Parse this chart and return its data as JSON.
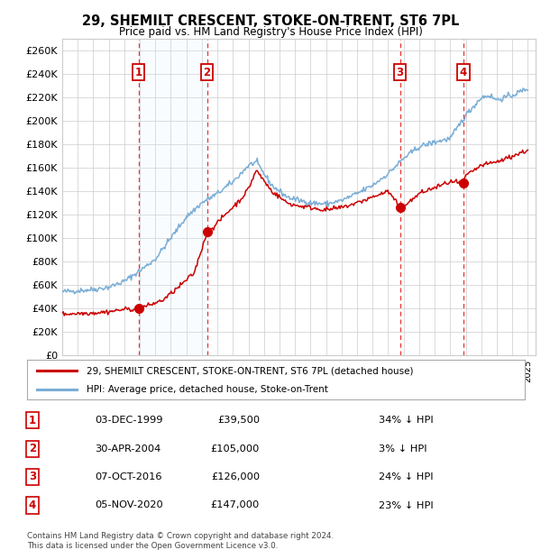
{
  "title": "29, SHEMILT CRESCENT, STOKE-ON-TRENT, ST6 7PL",
  "subtitle": "Price paid vs. HM Land Registry's House Price Index (HPI)",
  "ylim": [
    0,
    270000
  ],
  "yticks": [
    0,
    20000,
    40000,
    60000,
    80000,
    100000,
    120000,
    140000,
    160000,
    180000,
    200000,
    220000,
    240000,
    260000
  ],
  "xlim_start": 1995.0,
  "xlim_end": 2025.5,
  "sale_dates": [
    1999.92,
    2004.33,
    2016.77,
    2020.84
  ],
  "sale_prices": [
    39500,
    105000,
    126000,
    147000
  ],
  "sale_labels": [
    "1",
    "2",
    "3",
    "4"
  ],
  "legend_red": "29, SHEMILT CRESCENT, STOKE-ON-TRENT, ST6 7PL (detached house)",
  "legend_blue": "HPI: Average price, detached house, Stoke-on-Trent",
  "table_rows": [
    [
      "1",
      "03-DEC-1999",
      "£39,500",
      "34% ↓ HPI"
    ],
    [
      "2",
      "30-APR-2004",
      "£105,000",
      "3% ↓ HPI"
    ],
    [
      "3",
      "07-OCT-2016",
      "£126,000",
      "24% ↓ HPI"
    ],
    [
      "4",
      "05-NOV-2020",
      "£147,000",
      "23% ↓ HPI"
    ]
  ],
  "footer": "Contains HM Land Registry data © Crown copyright and database right 2024.\nThis data is licensed under the Open Government Licence v3.0.",
  "red_color": "#cc0000",
  "blue_color": "#7aaed6",
  "bg_color": "#ffffff",
  "grid_color": "#cccccc",
  "vline_color": "#ee3333",
  "shade_color": "#ddeeff",
  "font_color": "#000000",
  "hpi_anchors_t": [
    1995.0,
    1996.0,
    1997.0,
    1998.0,
    1999.0,
    2000.0,
    2001.0,
    2002.0,
    2003.0,
    2004.0,
    2005.0,
    2006.0,
    2007.0,
    2007.5,
    2008.5,
    2009.5,
    2010.0,
    2011.0,
    2012.0,
    2013.0,
    2014.0,
    2015.0,
    2016.0,
    2017.0,
    2018.0,
    2019.0,
    2020.0,
    2021.0,
    2022.0,
    2022.5,
    2023.0,
    2024.0,
    2025.0
  ],
  "hpi_anchors_p": [
    54000,
    55000,
    56000,
    58000,
    63000,
    72000,
    82000,
    100000,
    118000,
    130000,
    138000,
    148000,
    162000,
    165000,
    145000,
    135000,
    133000,
    130000,
    129000,
    132000,
    138000,
    145000,
    155000,
    168000,
    178000,
    182000,
    185000,
    205000,
    220000,
    222000,
    218000,
    222000,
    228000
  ],
  "red_anchors_t": [
    1995.0,
    1996.0,
    1997.0,
    1998.0,
    1999.0,
    1999.92,
    2000.5,
    2001.5,
    2002.5,
    2003.5,
    2004.33,
    2004.8,
    2005.5,
    2006.5,
    2007.0,
    2007.5,
    2008.5,
    2009.5,
    2010.0,
    2011.0,
    2012.0,
    2013.0,
    2014.0,
    2015.0,
    2016.0,
    2016.77,
    2017.0,
    2017.5,
    2018.0,
    2019.0,
    2020.0,
    2020.84,
    2021.0,
    2022.0,
    2023.0,
    2024.0,
    2025.0
  ],
  "red_anchors_p": [
    35000,
    35500,
    36000,
    37000,
    39000,
    39500,
    42000,
    47000,
    58000,
    70000,
    105000,
    110000,
    120000,
    133000,
    142000,
    158000,
    140000,
    130000,
    128000,
    126000,
    124000,
    126000,
    130000,
    135000,
    140000,
    126000,
    128000,
    132000,
    138000,
    143000,
    148000,
    147000,
    153000,
    162000,
    165000,
    170000,
    175000
  ]
}
